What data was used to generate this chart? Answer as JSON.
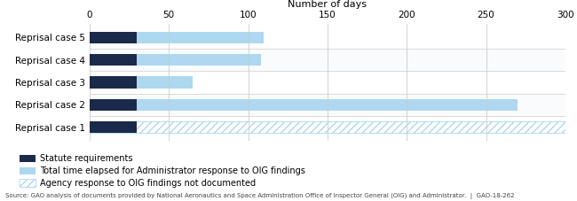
{
  "categories": [
    "Reprisal case 1",
    "Reprisal case 2",
    "Reprisal case 3",
    "Reprisal case 4",
    "Reprisal case 5"
  ],
  "statute_values": [
    30,
    30,
    30,
    30,
    30
  ],
  "total_elapsed": [
    300,
    270,
    65,
    108,
    110
  ],
  "hatched": [
    true,
    false,
    false,
    false,
    false
  ],
  "xlim": [
    0,
    300
  ],
  "xticks": [
    0,
    50,
    100,
    150,
    200,
    250,
    300
  ],
  "xlabel": "Number of days",
  "dark_navy": "#1b2a4a",
  "light_blue": "#add8f0",
  "bg_color": "#ffffff",
  "grid_color": "#cccccc",
  "bar_height": 0.52,
  "legend_labels": [
    "Statute requirements",
    "Total time elapsed for Administrator response to OIG findings",
    "Agency response to OIG findings not documented"
  ],
  "source_text": "Source: GAO analysis of documents provided by National Aeronautics and Space Administration Office of Inspector General (OIG) and Administrator.  |  GAO-18-262",
  "row_colors": [
    "#ffffff",
    "#f0f4f8",
    "#ffffff",
    "#f0f4f8",
    "#ffffff"
  ]
}
